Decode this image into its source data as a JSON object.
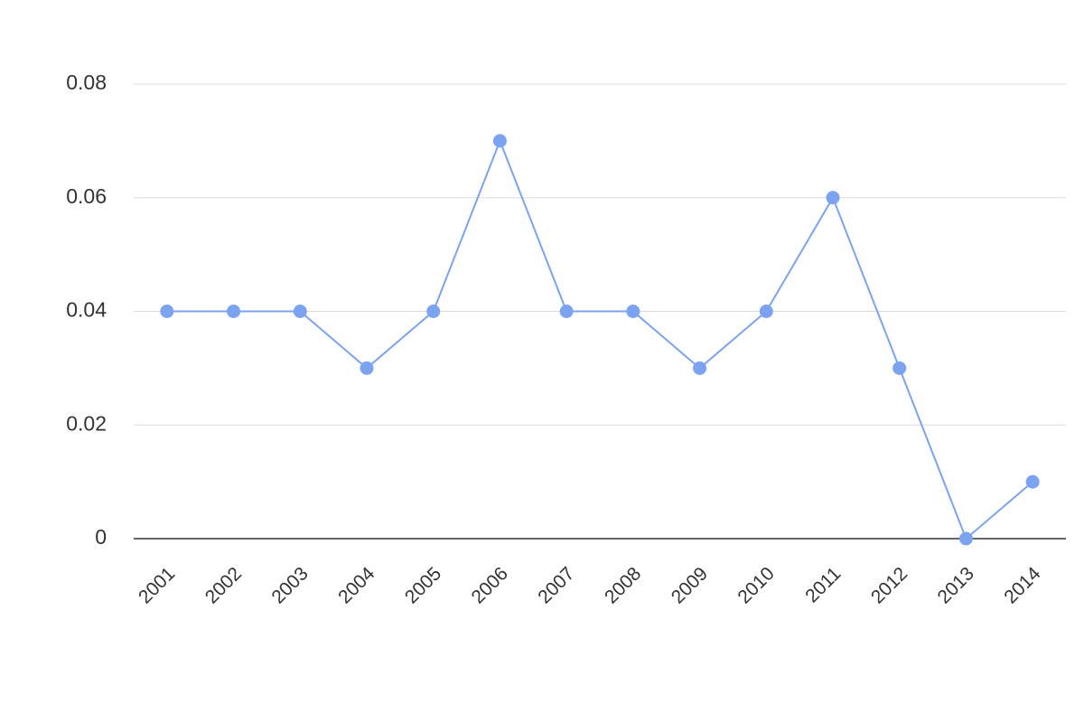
{
  "chart_data": {
    "type": "line",
    "categories": [
      "2001",
      "2002",
      "2003",
      "2004",
      "2005",
      "2006",
      "2007",
      "2008",
      "2009",
      "2010",
      "2011",
      "2012",
      "2013",
      "2014"
    ],
    "series": [
      {
        "color": "#7ba3f0",
        "values": [
          0.04,
          0.04,
          0.04,
          0.03,
          0.04,
          0.07,
          0.04,
          0.04,
          0.03,
          0.04,
          0.06,
          0.03,
          0,
          0.01
        ]
      }
    ],
    "ylim": [
      0,
      0.08
    ],
    "yticks": [
      0,
      0.02,
      0.04,
      0.06,
      0.08
    ],
    "grid": true
  }
}
